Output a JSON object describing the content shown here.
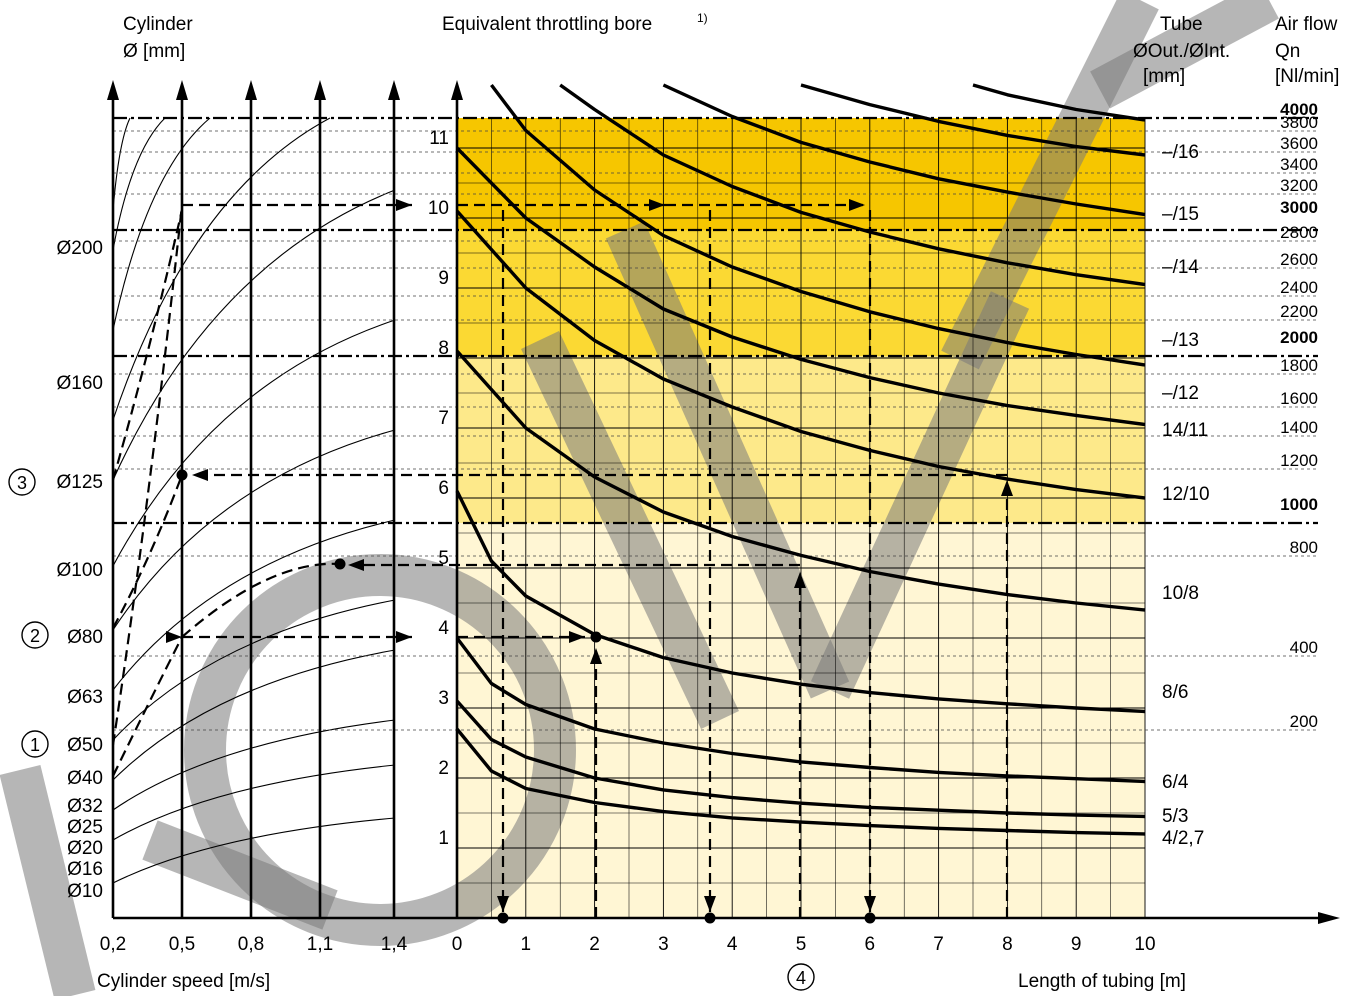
{
  "colors": {
    "yellow_strong": "#f6c600",
    "yellow_medium": "#fbd933",
    "yellow_light": "#fde98a",
    "yellow_pale": "#fff6d4",
    "watermark": "#7a7a7a",
    "ink": "#000000"
  },
  "headers": {
    "cylinder_line1": "Cylinder",
    "cylinder_line2": "Ø [mm]",
    "bore_title": "Equivalent throttling bore",
    "bore_note": "1)",
    "tube_line1": "Tube",
    "tube_line2": "ØOut./ØInt.",
    "tube_line3": "[mm]",
    "air_line1": "Air flow",
    "air_line2": "Qn",
    "air_line3": "[Nl/min]"
  },
  "footers": {
    "speed_label": "Cylinder speed [m/s]",
    "length_label": "Length of tubing [m]"
  },
  "markers": [
    {
      "num": "1",
      "label": "Ø50"
    },
    {
      "num": "2",
      "label": "Ø80"
    },
    {
      "num": "3",
      "label": "Ø125"
    },
    {
      "num": "4",
      "label": ""
    }
  ],
  "chart_data": {
    "type": "line",
    "left_panel": {
      "x_label": "Cylinder speed [m/s]",
      "x_ticks": [
        "0,2",
        "0,5",
        "0,8",
        "1,1",
        "1,4"
      ],
      "x_values": [
        0.2,
        0.5,
        0.8,
        1.1,
        1.4
      ],
      "cylinder_diameters": [
        "Ø200",
        "Ø160",
        "Ø125",
        "Ø100",
        "Ø80",
        "Ø63",
        "Ø50",
        "Ø40",
        "Ø32",
        "Ø25",
        "Ø20",
        "Ø16",
        "Ø10"
      ]
    },
    "right_panel": {
      "x_label": "Length of tubing [m]",
      "xlim": [
        0,
        10
      ],
      "x_ticks": [
        "0",
        "1",
        "2",
        "3",
        "4",
        "5",
        "6",
        "7",
        "8",
        "9",
        "10"
      ],
      "ylim": [
        0,
        12
      ],
      "y_ticks": [
        "1",
        "2",
        "3",
        "4",
        "5",
        "6",
        "7",
        "8",
        "9",
        "10",
        "11"
      ],
      "y_label": "Equivalent throttling bore",
      "air_flow_ticks": [
        "4000",
        "3800",
        "3600",
        "3400",
        "3200",
        "3000",
        "2800",
        "2600",
        "2400",
        "2200",
        "2000",
        "1800",
        "1600",
        "1400",
        "1200",
        "1000",
        "800",
        "400",
        "200"
      ],
      "air_flow_bold": [
        "4000",
        "3000",
        "2000",
        "1000"
      ],
      "series": [
        {
          "name": "4/2,7",
          "x": [
            0,
            0.5,
            1,
            2,
            3,
            4,
            5,
            6,
            7,
            8,
            9,
            10
          ],
          "y": [
            2.7,
            2.1,
            1.85,
            1.65,
            1.52,
            1.43,
            1.37,
            1.32,
            1.28,
            1.25,
            1.22,
            1.2
          ]
        },
        {
          "name": "5/3",
          "x": [
            0,
            0.5,
            1,
            2,
            3,
            4,
            5,
            6,
            7,
            8,
            9,
            10
          ],
          "y": [
            3.1,
            2.55,
            2.3,
            2.0,
            1.83,
            1.72,
            1.64,
            1.58,
            1.54,
            1.5,
            1.47,
            1.45
          ]
        },
        {
          "name": "6/4",
          "x": [
            0,
            0.5,
            1,
            2,
            3,
            4,
            5,
            6,
            7,
            8,
            9,
            10
          ],
          "y": [
            4.0,
            3.35,
            3.05,
            2.7,
            2.5,
            2.35,
            2.23,
            2.15,
            2.08,
            2.03,
            1.99,
            1.95
          ]
        },
        {
          "name": "8/6",
          "x": [
            0,
            0.5,
            1,
            2,
            3,
            4,
            5,
            6,
            7,
            8,
            9,
            10
          ],
          "y": [
            6.1,
            5.1,
            4.6,
            4.05,
            3.72,
            3.5,
            3.34,
            3.22,
            3.13,
            3.06,
            3.0,
            2.95
          ]
        },
        {
          "name": "10/8",
          "x": [
            0,
            1,
            2,
            3,
            4,
            5,
            6,
            7,
            8,
            9,
            10
          ],
          "y": [
            8.1,
            7.0,
            6.3,
            5.8,
            5.45,
            5.18,
            4.95,
            4.77,
            4.62,
            4.5,
            4.4
          ]
        },
        {
          "name": "12/10",
          "x": [
            0,
            1,
            2,
            3,
            4,
            5,
            6,
            7,
            8,
            9,
            10
          ],
          "y": [
            10.1,
            9.0,
            8.25,
            7.7,
            7.3,
            6.95,
            6.68,
            6.45,
            6.27,
            6.12,
            6.0
          ]
        },
        {
          "name": "14/11",
          "x": [
            0,
            1,
            2,
            3,
            4,
            5,
            6,
            7,
            8,
            9,
            10
          ],
          "y": [
            11.0,
            10.0,
            9.3,
            8.7,
            8.3,
            7.98,
            7.72,
            7.5,
            7.32,
            7.18,
            7.05
          ]
        },
        {
          "name": "–/12",
          "x": [
            0.5,
            1,
            2,
            3,
            4,
            5,
            6,
            7,
            8,
            9,
            10
          ],
          "y": [
            11.9,
            11.25,
            10.4,
            9.75,
            9.3,
            8.95,
            8.66,
            8.42,
            8.22,
            8.05,
            7.9
          ]
        },
        {
          "name": "–/13",
          "x": [
            1.5,
            2,
            3,
            4,
            5,
            6,
            7,
            8,
            9,
            10
          ],
          "y": [
            11.9,
            11.55,
            10.9,
            10.45,
            10.08,
            9.8,
            9.56,
            9.36,
            9.19,
            9.05
          ]
        },
        {
          "name": "–/14",
          "x": [
            3,
            4,
            5,
            6,
            7,
            8,
            9,
            10
          ],
          "y": [
            11.9,
            11.45,
            11.08,
            10.8,
            10.56,
            10.37,
            10.2,
            10.05
          ]
        },
        {
          "name": "–/15",
          "x": [
            5,
            6,
            7,
            8,
            9,
            10
          ],
          "y": [
            11.9,
            11.62,
            11.38,
            11.18,
            11.02,
            10.9
          ]
        },
        {
          "name": "–/16",
          "x": [
            7.5,
            8,
            9,
            10
          ],
          "y": [
            11.9,
            11.76,
            11.55,
            11.4
          ]
        }
      ]
    }
  }
}
